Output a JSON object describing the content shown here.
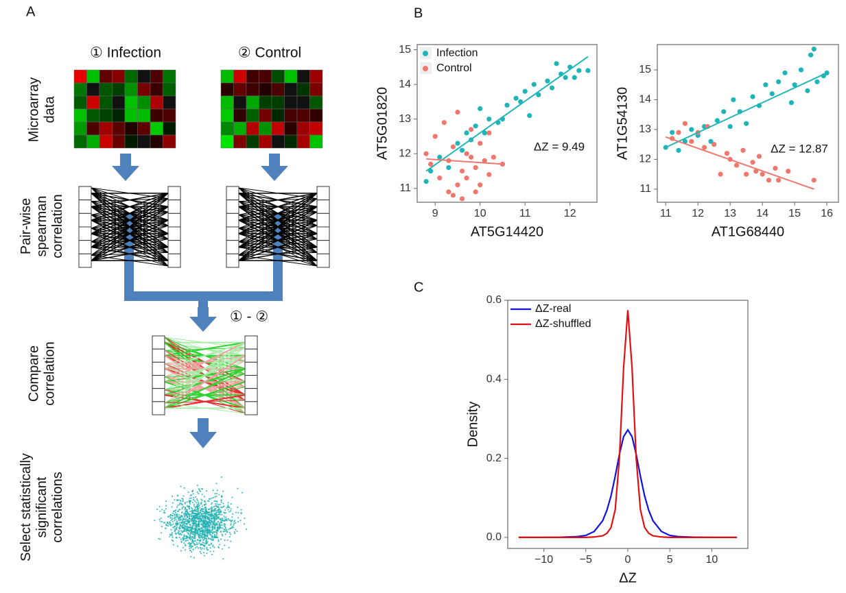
{
  "panel_a": {
    "label": "A",
    "groups": [
      "① Infection",
      "② Control"
    ],
    "difference": "① - ②",
    "steps": [
      [
        "Microarray",
        "data"
      ],
      [
        "Pair-wise",
        "spearman",
        "correlation"
      ],
      [
        "Compare",
        "correlation"
      ],
      [
        "Select statistically",
        "significant",
        "correlations"
      ]
    ]
  },
  "chart_data": [
    {
      "type": "scatter",
      "panel": "B",
      "x_label": "AT5G14420",
      "y_label": "AT5G01820",
      "annotation": "ΔZ = 9.49",
      "xlim": [
        8.6,
        12.6
      ],
      "xticks": [
        9,
        10,
        11,
        12
      ],
      "ylim": [
        10.6,
        15.15
      ],
      "yticks": [
        11,
        12,
        13,
        14,
        15
      ],
      "legend": "top-left",
      "series": [
        {
          "name": "Infection",
          "color": "#1fb5b8",
          "x": [
            8.8,
            8.9,
            9.1,
            9.3,
            9.5,
            9.6,
            9.7,
            9.8,
            9.9,
            10.0,
            10.1,
            10.2,
            10.4,
            10.5,
            10.6,
            10.8,
            10.9,
            11.0,
            11.1,
            11.2,
            11.3,
            11.5,
            11.6,
            11.7,
            11.8,
            11.9,
            12.0,
            12.1,
            12.2,
            12.4
          ],
          "values": [
            11.2,
            11.5,
            11.9,
            11.6,
            12.3,
            12.1,
            12.6,
            12.4,
            12.8,
            13.3,
            12.6,
            13.0,
            12.9,
            13.0,
            13.4,
            13.6,
            13.5,
            13.8,
            13.1,
            14.0,
            13.7,
            14.1,
            13.9,
            14.6,
            14.3,
            14.2,
            14.5,
            14.2,
            14.4,
            14.4
          ],
          "trend_x": [
            8.8,
            12.4
          ],
          "trend_values": [
            11.5,
            14.8
          ]
        },
        {
          "name": "Control",
          "color": "#f0776d",
          "x": [
            8.8,
            8.9,
            9.0,
            9.1,
            9.2,
            9.3,
            9.3,
            9.4,
            9.4,
            9.5,
            9.5,
            9.6,
            9.6,
            9.7,
            9.7,
            9.8,
            9.8,
            9.9,
            9.9,
            10.0,
            10.0,
            10.1,
            10.2,
            10.2,
            10.3,
            10.5
          ],
          "values": [
            12.0,
            11.7,
            12.5,
            11.3,
            12.9,
            10.9,
            11.8,
            10.8,
            12.2,
            11.1,
            13.2,
            11.5,
            10.7,
            12.0,
            11.3,
            11.9,
            12.7,
            11.6,
            10.9,
            12.3,
            11.1,
            11.8,
            12.6,
            11.4,
            11.9,
            11.7
          ],
          "trend_x": [
            8.8,
            10.5
          ],
          "trend_values": [
            11.85,
            11.7
          ]
        }
      ]
    },
    {
      "type": "scatter",
      "x_label": "AT1G68440",
      "y_label": "AT1G54130",
      "annotation": "ΔZ = 12.87",
      "xlim": [
        10.74,
        16.36
      ],
      "xticks": [
        11,
        12,
        13,
        14,
        15,
        16
      ],
      "ylim": [
        10.56,
        15.85
      ],
      "yticks": [
        11,
        12,
        13,
        14,
        15
      ],
      "series": [
        {
          "color": "#1fb5b8",
          "x": [
            11.0,
            11.2,
            11.4,
            11.6,
            11.8,
            12.0,
            12.2,
            12.4,
            12.6,
            12.8,
            13.0,
            13.1,
            13.3,
            13.5,
            13.7,
            13.9,
            14.1,
            14.3,
            14.5,
            14.7,
            14.9,
            15.0,
            15.2,
            15.4,
            15.5,
            15.6,
            15.7,
            15.9,
            16.0
          ],
          "values": [
            12.4,
            12.9,
            12.3,
            12.6,
            13.0,
            12.8,
            13.1,
            12.6,
            13.3,
            13.6,
            13.1,
            14.0,
            13.6,
            13.2,
            14.1,
            13.8,
            14.5,
            14.2,
            14.6,
            14.9,
            13.9,
            14.5,
            15.0,
            14.3,
            15.5,
            15.7,
            14.6,
            14.8,
            14.9
          ],
          "trend_x": [
            11.0,
            16.0
          ],
          "trend_values": [
            12.4,
            14.9
          ]
        },
        {
          "color": "#f0776d",
          "x": [
            11.2,
            11.4,
            11.6,
            11.8,
            12.0,
            12.2,
            12.3,
            12.5,
            12.7,
            12.9,
            13.0,
            13.2,
            13.4,
            13.5,
            13.7,
            13.8,
            13.9,
            14.0,
            14.2,
            14.4,
            14.5,
            14.8,
            15.6
          ],
          "values": [
            12.7,
            12.9,
            13.2,
            12.6,
            12.9,
            12.4,
            13.1,
            12.5,
            11.5,
            12.2,
            12.0,
            11.8,
            12.3,
            11.5,
            11.9,
            11.6,
            12.1,
            11.5,
            11.3,
            11.7,
            11.3,
            11.6,
            11.3
          ],
          "trend_x": [
            11.0,
            15.6
          ],
          "trend_values": [
            12.75,
            11.0
          ]
        }
      ]
    },
    {
      "type": "line",
      "panel": "C",
      "x_label": "ΔZ",
      "y_label": "Density",
      "xlim": [
        -14.3,
        14.3
      ],
      "xticks": [
        {
          "value": -10,
          "label": "−10"
        },
        {
          "value": -5,
          "label": "−5"
        },
        0,
        5,
        10
      ],
      "ylim": [
        -0.028,
        0.6
      ],
      "yticks": [
        {
          "value": 0,
          "label": "0.0"
        },
        0.2,
        0.4,
        0.6
      ],
      "legend": "top-left",
      "x": [
        -13,
        -10,
        -8,
        -6,
        -5,
        -4,
        -3,
        -2.5,
        -2,
        -1.5,
        -1,
        -0.5,
        0,
        0.5,
        1,
        1.5,
        2,
        2.5,
        3,
        4,
        5,
        6,
        8,
        10,
        13
      ],
      "series": [
        {
          "name": "ΔZ-real",
          "color": "#1010e0",
          "values": [
            0,
            0,
            0.0005,
            0.002,
            0.005,
            0.015,
            0.042,
            0.068,
            0.105,
            0.155,
            0.21,
            0.255,
            0.272,
            0.255,
            0.21,
            0.155,
            0.105,
            0.068,
            0.042,
            0.015,
            0.005,
            0.002,
            0.0005,
            0,
            0
          ]
        },
        {
          "name": "ΔZ-shuffled",
          "color": "#e01010",
          "values": [
            0,
            0,
            0,
            0,
            0,
            0.001,
            0.004,
            0.01,
            0.025,
            0.07,
            0.2,
            0.43,
            0.575,
            0.43,
            0.2,
            0.07,
            0.025,
            0.01,
            0.004,
            0.001,
            0,
            0,
            0,
            0,
            0
          ]
        }
      ]
    }
  ]
}
